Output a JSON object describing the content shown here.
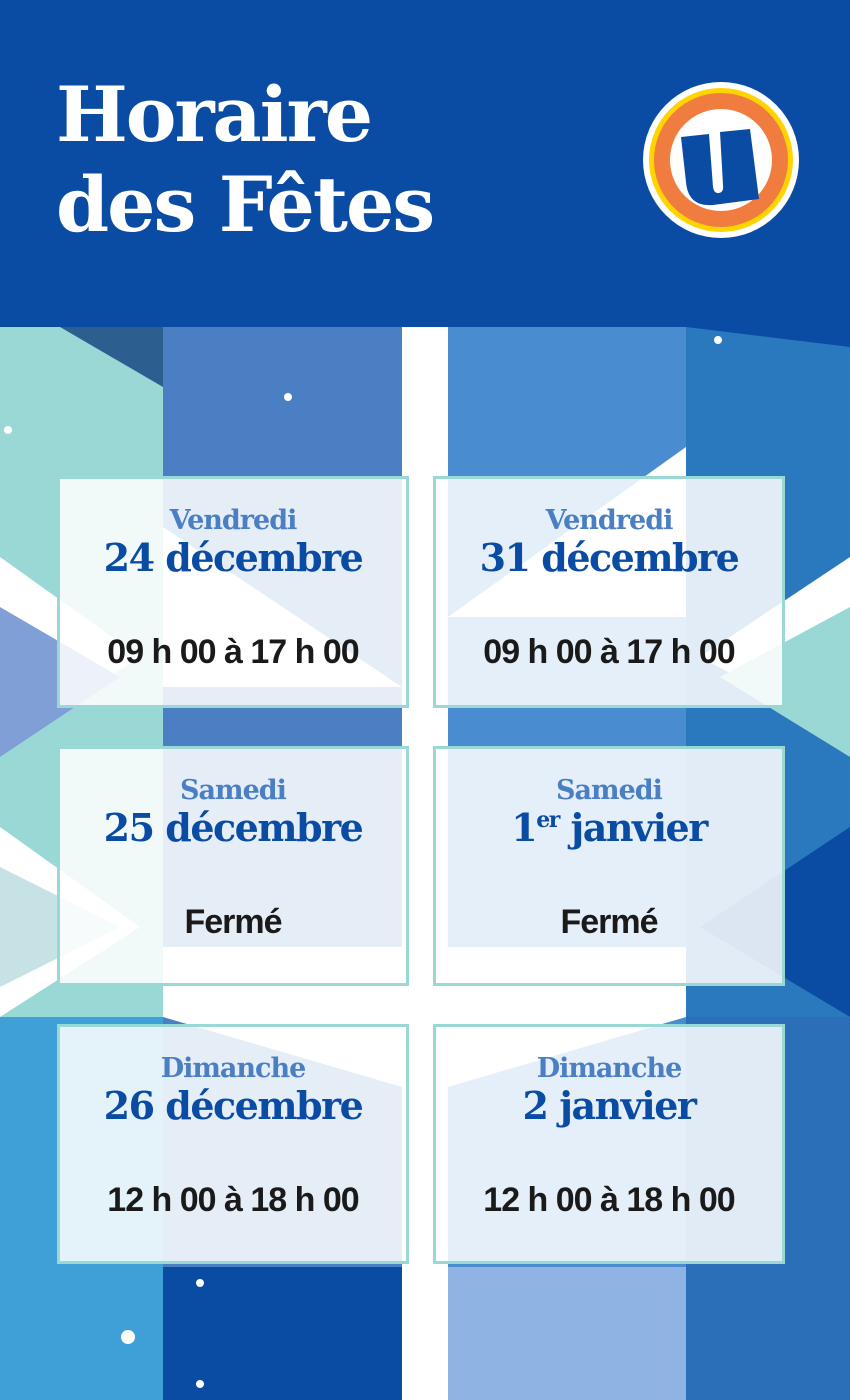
{
  "header": {
    "title_line1": "Horaire",
    "title_line2": "des Fêtes",
    "logo_letter": "U"
  },
  "colors": {
    "brand_blue": "#0a4ca3",
    "accent_blue": "#4a7fc4",
    "teal": "#9ad8d6",
    "logo_orange": "#f07c3f",
    "logo_yellow": "#ffd400"
  },
  "schedule": [
    {
      "day": "Vendredi",
      "date": "24 décembre",
      "date_sup": "",
      "hours": "09 h 00 à 17 h 00"
    },
    {
      "day": "Vendredi",
      "date": "31 décembre",
      "date_sup": "",
      "hours": "09 h 00 à 17 h 00"
    },
    {
      "day": "Samedi",
      "date": "25 décembre",
      "date_sup": "",
      "hours": "Fermé"
    },
    {
      "day": "Samedi",
      "date_pre": "1",
      "date_sup": "er",
      "date": " janvier",
      "hours": "Fermé"
    },
    {
      "day": "Dimanche",
      "date": "26 décembre",
      "date_sup": "",
      "hours": "12 h 00 à 18 h 00"
    },
    {
      "day": "Dimanche",
      "date": "2 janvier",
      "date_sup": "",
      "hours": "12 h 00 à 18 h 00"
    }
  ]
}
